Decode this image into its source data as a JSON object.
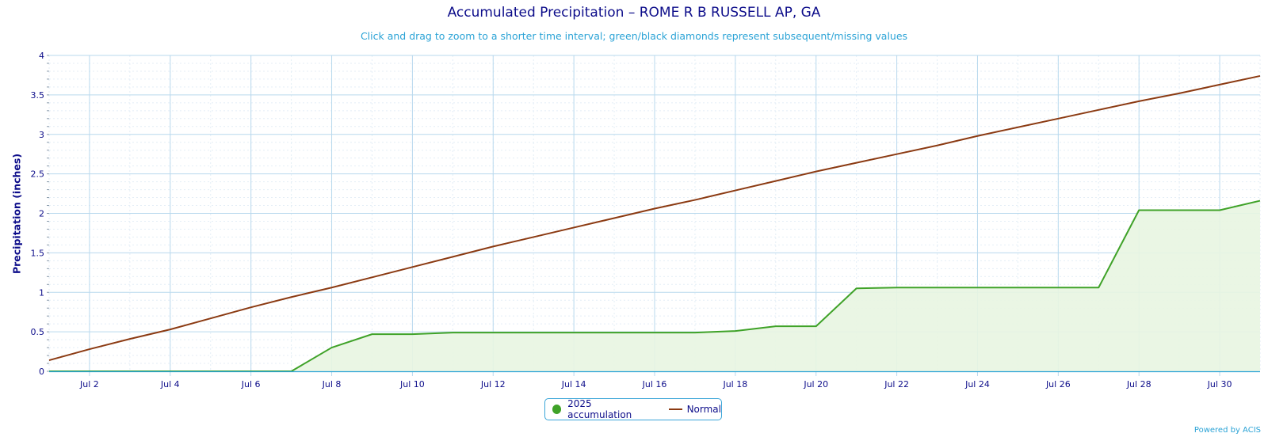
{
  "chart_data": {
    "type": "area",
    "title": "Accumulated Precipitation – ROME R B RUSSELL AP, GA",
    "subtitle": "Click and drag to zoom to a shorter time interval; green/black diamonds represent subsequent/missing values",
    "ylabel": "Precipitation (inches)",
    "xlabel": "",
    "ylim": [
      0,
      4
    ],
    "yticks": [
      "0",
      "0.5",
      "1",
      "1.5",
      "2",
      "2.5",
      "3",
      "3.5",
      "4"
    ],
    "xrange": [
      1,
      31
    ],
    "xticks": [
      {
        "day": 2,
        "label": "Jul 2"
      },
      {
        "day": 4,
        "label": "Jul 4"
      },
      {
        "day": 6,
        "label": "Jul 6"
      },
      {
        "day": 8,
        "label": "Jul 8"
      },
      {
        "day": 10,
        "label": "Jul 10"
      },
      {
        "day": 12,
        "label": "Jul 12"
      },
      {
        "day": 14,
        "label": "Jul 14"
      },
      {
        "day": 16,
        "label": "Jul 16"
      },
      {
        "day": 18,
        "label": "Jul 18"
      },
      {
        "day": 20,
        "label": "Jul 20"
      },
      {
        "day": 22,
        "label": "Jul 22"
      },
      {
        "day": 24,
        "label": "Jul 24"
      },
      {
        "day": 26,
        "label": "Jul 26"
      },
      {
        "day": 28,
        "label": "Jul 28"
      },
      {
        "day": 30,
        "label": "Jul 30"
      }
    ],
    "grid": true,
    "legend_position": "bottom-center",
    "series": [
      {
        "name": "2025 accumulation",
        "color": "#3fa228",
        "fill": "#e8f5e1",
        "x": [
          1,
          2,
          3,
          4,
          5,
          6,
          7,
          8,
          9,
          10,
          11,
          12,
          13,
          14,
          15,
          16,
          17,
          18,
          19,
          20,
          21,
          22,
          23,
          24,
          25,
          26,
          27,
          28,
          29,
          30,
          31
        ],
        "values": [
          0,
          0,
          0,
          0,
          0,
          0,
          0,
          0.3,
          0.47,
          0.47,
          0.49,
          0.49,
          0.49,
          0.49,
          0.49,
          0.49,
          0.49,
          0.51,
          0.57,
          0.57,
          1.05,
          1.06,
          1.06,
          1.06,
          1.06,
          1.06,
          1.06,
          2.04,
          2.04,
          2.04,
          2.16
        ]
      },
      {
        "name": "Normal",
        "color": "#8b3a12",
        "x": [
          1,
          2,
          3,
          4,
          5,
          6,
          7,
          8,
          9,
          10,
          11,
          12,
          13,
          14,
          15,
          16,
          17,
          18,
          19,
          20,
          21,
          22,
          23,
          24,
          25,
          26,
          27,
          28,
          29,
          30,
          31
        ],
        "values": [
          0.14,
          0.28,
          0.41,
          0.53,
          0.67,
          0.81,
          0.94,
          1.06,
          1.19,
          1.32,
          1.45,
          1.58,
          1.7,
          1.82,
          1.94,
          2.06,
          2.17,
          2.29,
          2.41,
          2.53,
          2.64,
          2.75,
          2.86,
          2.98,
          3.09,
          3.2,
          3.31,
          3.42,
          3.52,
          3.63,
          3.74
        ]
      }
    ]
  },
  "credits": "Powered by ACIS"
}
